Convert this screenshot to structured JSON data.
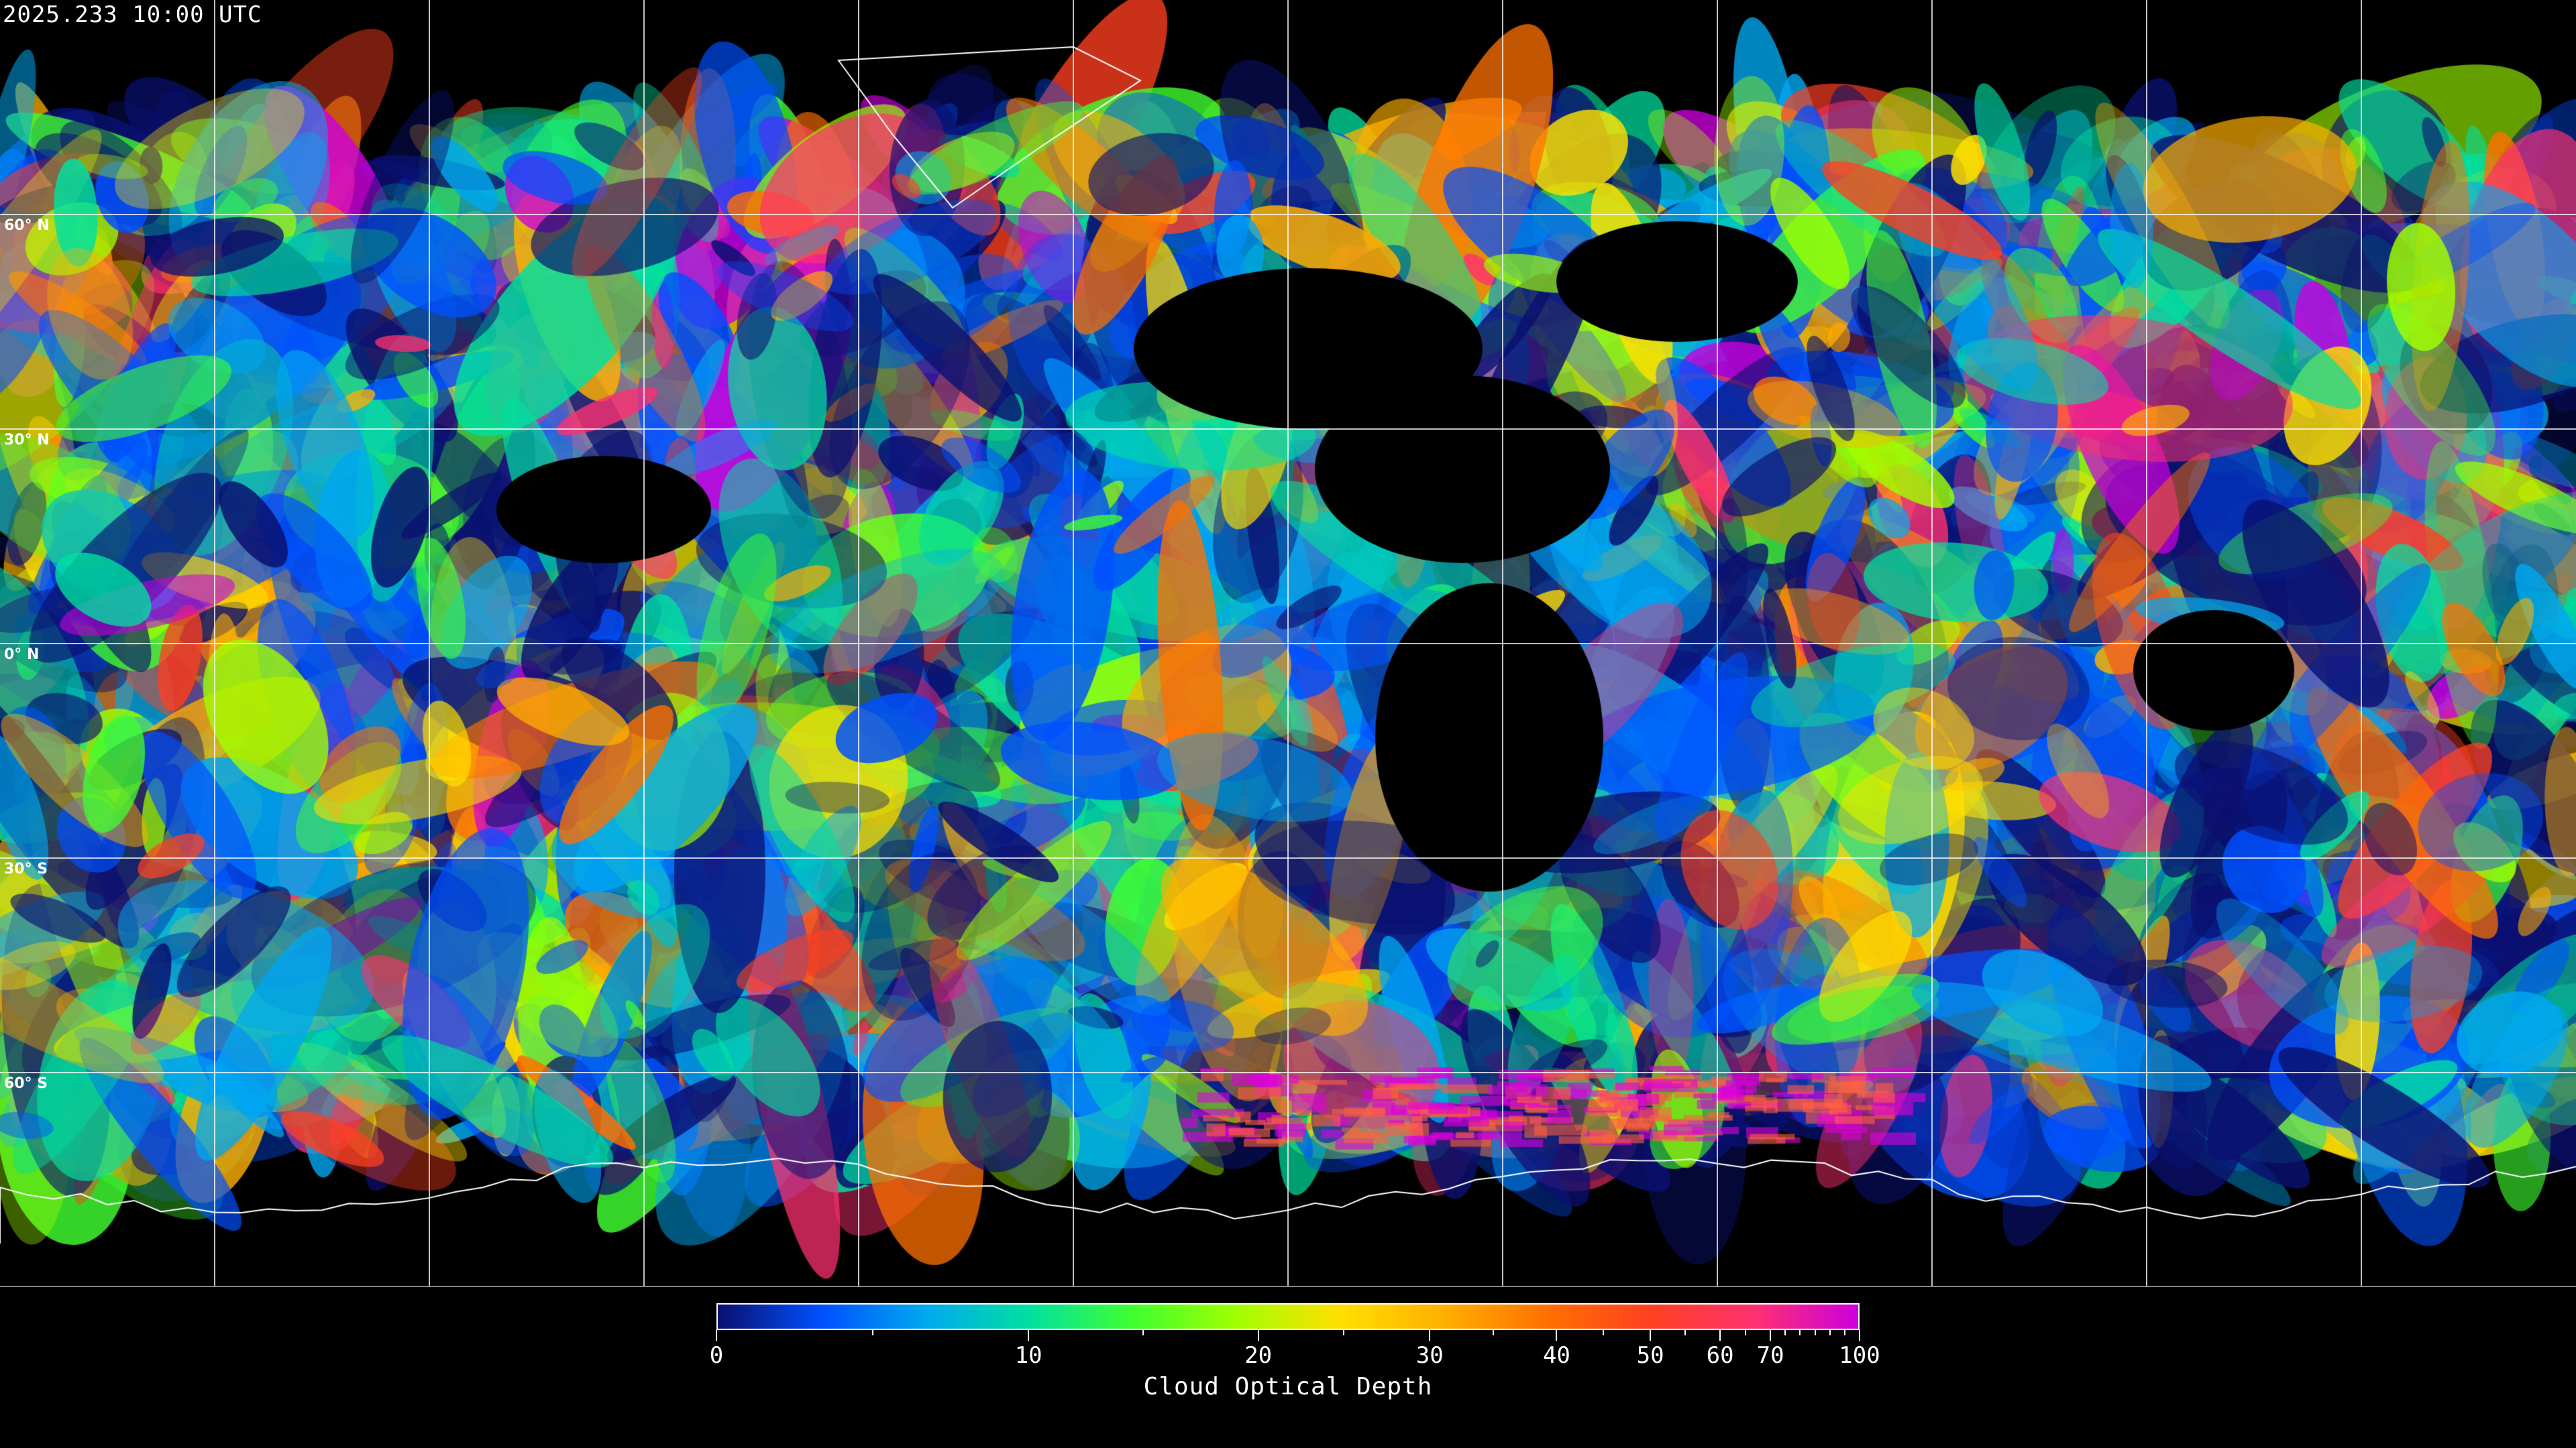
{
  "title": "2025.233 10:00 UTC",
  "map": {
    "projection": "equirectangular",
    "latitude_labels": [
      "60° N",
      "30° N",
      "0° N",
      "30° S",
      "60° S"
    ],
    "gridlines": true,
    "background_color": "#000000",
    "coastline_color": "#ffffff"
  },
  "colorbar": {
    "label": "Cloud Optical Depth",
    "tick_labels": [
      "0",
      "10",
      "20",
      "30",
      "40",
      "50",
      "60",
      "70",
      "100"
    ],
    "min": 0,
    "max": 100,
    "colors": [
      "#0a1070",
      "#0050ff",
      "#00a8f0",
      "#00e0a0",
      "#40ff30",
      "#a0ff00",
      "#ffe000",
      "#ffb000",
      "#ff7000",
      "#ff4020",
      "#ff3070",
      "#cc00dd"
    ]
  }
}
